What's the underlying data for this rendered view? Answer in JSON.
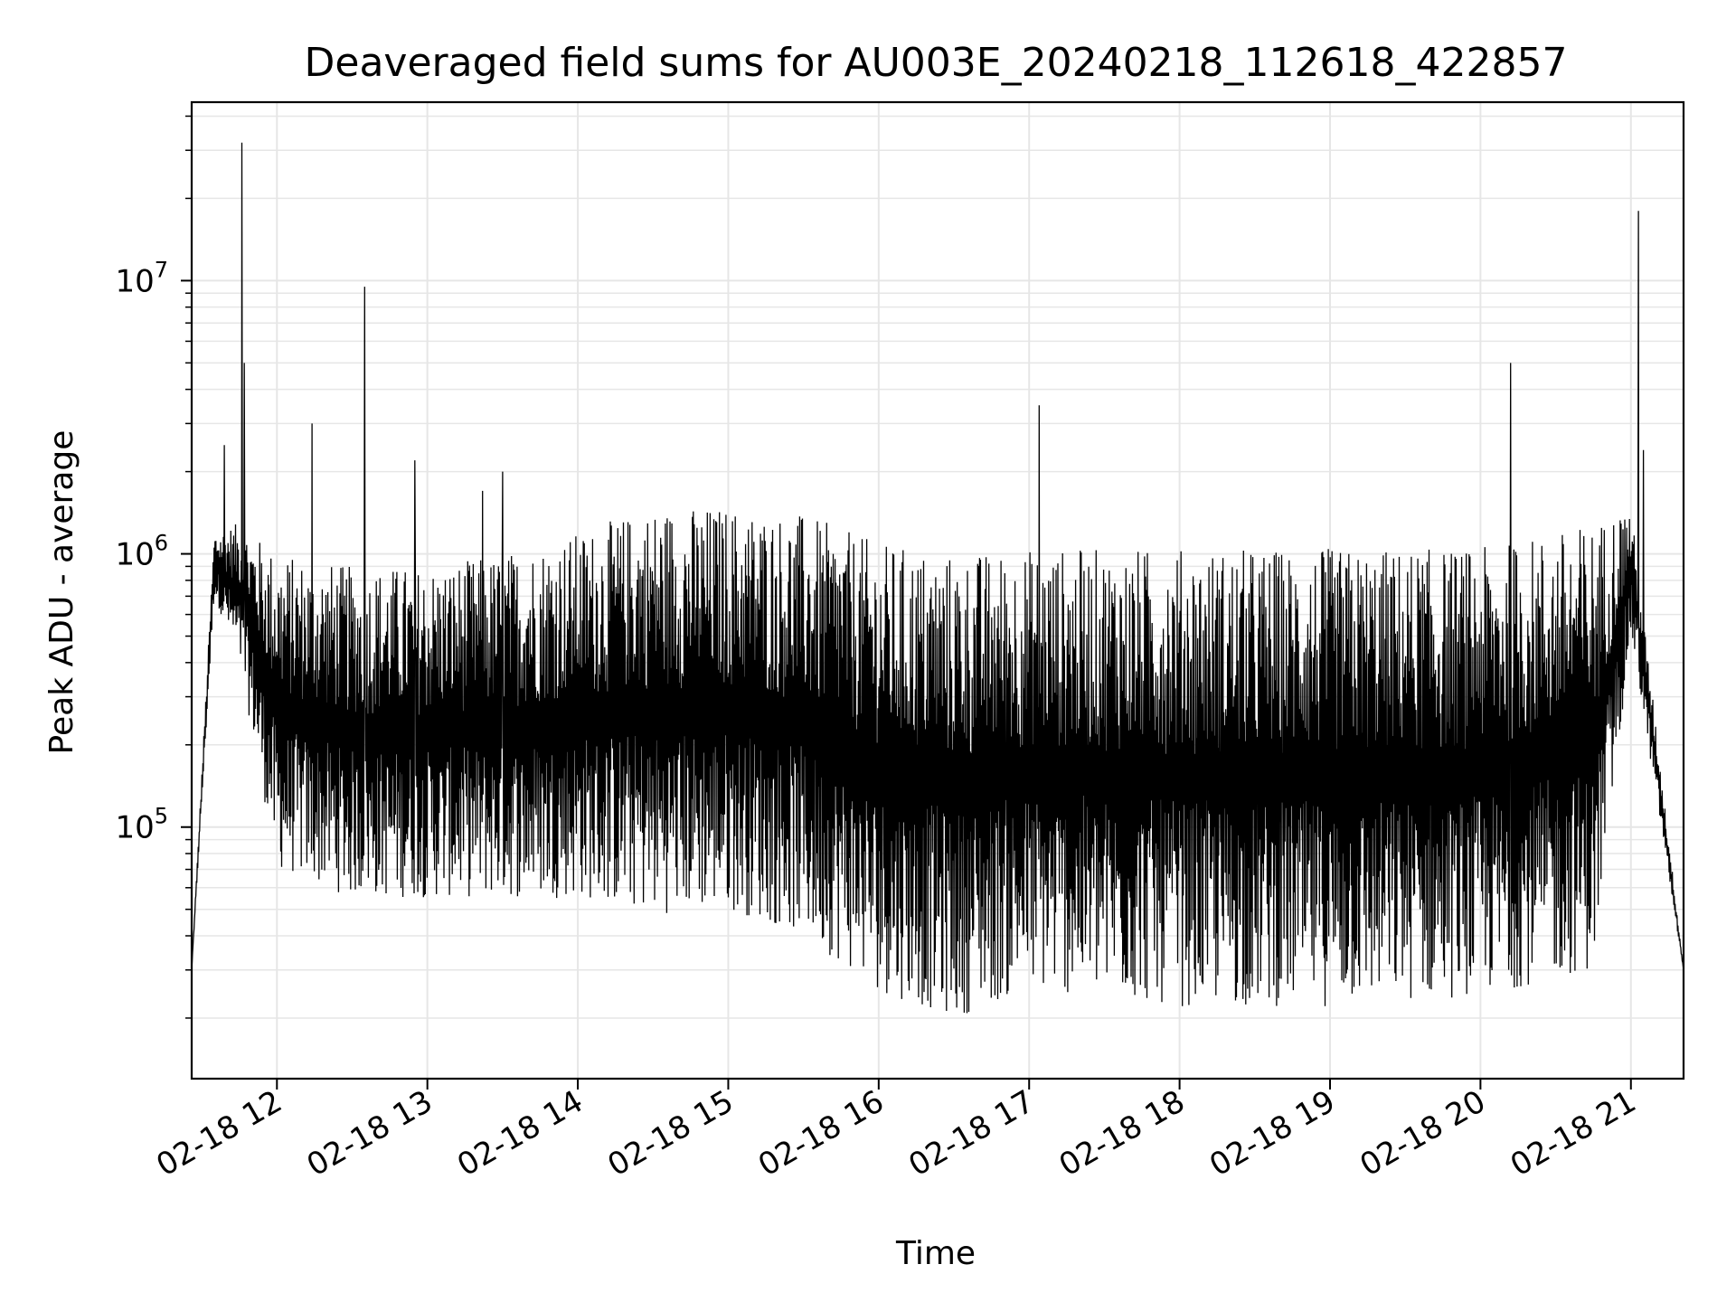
{
  "chart_data": {
    "type": "line",
    "title": "Deaveraged field sums for AU003E_20240218_112618_422857",
    "xlabel": "Time",
    "ylabel": "Peak ADU - average",
    "yscale": "log",
    "grid": true,
    "legend": "none",
    "xlim": [
      "2024-02-18 11:26",
      "2024-02-18 21:21"
    ],
    "ylim": [
      12000,
      45000000
    ],
    "x_ticks": [
      {
        "value": "2024-02-18 12:00",
        "label": "02-18 12"
      },
      {
        "value": "2024-02-18 13:00",
        "label": "02-18 13"
      },
      {
        "value": "2024-02-18 14:00",
        "label": "02-18 14"
      },
      {
        "value": "2024-02-18 15:00",
        "label": "02-18 15"
      },
      {
        "value": "2024-02-18 16:00",
        "label": "02-18 16"
      },
      {
        "value": "2024-02-18 17:00",
        "label": "02-18 17"
      },
      {
        "value": "2024-02-18 18:00",
        "label": "02-18 18"
      },
      {
        "value": "2024-02-18 19:00",
        "label": "02-18 19"
      },
      {
        "value": "2024-02-18 20:00",
        "label": "02-18 20"
      },
      {
        "value": "2024-02-18 21:00",
        "label": "02-18 21"
      }
    ],
    "y_ticks": [
      {
        "value": 100000,
        "base": "10",
        "exp": "5"
      },
      {
        "value": 1000000,
        "base": "10",
        "exp": "6"
      },
      {
        "value": 10000000,
        "base": "10",
        "exp": "7"
      }
    ],
    "line_color": "#000000",
    "grid_color": "#e6e6e6",
    "envelope": {
      "note_free": true,
      "t": [
        "2024-02-18 11:26",
        "2024-02-18 11:35",
        "2024-02-18 11:45",
        "2024-02-18 12:00",
        "2024-02-18 12:30",
        "2024-02-18 13:00",
        "2024-02-18 13:30",
        "2024-02-18 14:00",
        "2024-02-18 14:30",
        "2024-02-18 15:00",
        "2024-02-18 15:30",
        "2024-02-18 16:00",
        "2024-02-18 16:30",
        "2024-02-18 17:00",
        "2024-02-18 18:00",
        "2024-02-18 19:00",
        "2024-02-18 20:00",
        "2024-02-18 20:45",
        "2024-02-18 21:00",
        "2024-02-18 21:21"
      ],
      "upper": [
        30000,
        1200000,
        1300000,
        1000000,
        900000,
        900000,
        1000000,
        1200000,
        1500000,
        1500000,
        1400000,
        1100000,
        1000000,
        1050000,
        1050000,
        1050000,
        1050000,
        1300000,
        1500000,
        30000
      ],
      "lower": [
        30000,
        700000,
        400000,
        70000,
        55000,
        55000,
        55000,
        55000,
        48000,
        50000,
        40000,
        25000,
        20000,
        25000,
        22000,
        22000,
        24000,
        30000,
        500000,
        30000
      ]
    },
    "spikes": [
      {
        "t": "2024-02-18 11:39",
        "value": 2500000
      },
      {
        "t": "2024-02-18 11:46",
        "value": 32000000
      },
      {
        "t": "2024-02-18 11:47",
        "value": 5000000
      },
      {
        "t": "2024-02-18 12:14",
        "value": 3000000
      },
      {
        "t": "2024-02-18 12:35",
        "value": 9500000
      },
      {
        "t": "2024-02-18 12:55",
        "value": 2200000
      },
      {
        "t": "2024-02-18 13:22",
        "value": 1700000
      },
      {
        "t": "2024-02-18 13:30",
        "value": 2000000
      },
      {
        "t": "2024-02-18 17:04",
        "value": 3500000
      },
      {
        "t": "2024-02-18 20:12",
        "value": 5000000
      },
      {
        "t": "2024-02-18 21:03",
        "value": 18000000
      },
      {
        "t": "2024-02-18 21:05",
        "value": 2400000
      }
    ]
  }
}
